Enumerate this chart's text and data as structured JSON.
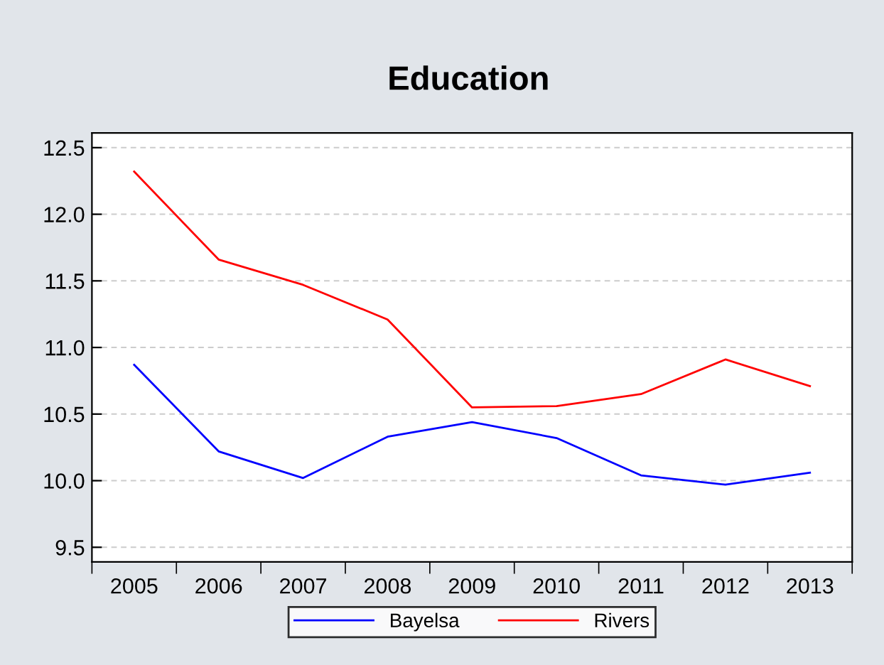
{
  "chart_data": {
    "type": "line",
    "title": "Education",
    "categories": [
      "2005",
      "2006",
      "2007",
      "2008",
      "2009",
      "2010",
      "2011",
      "2012",
      "2013"
    ],
    "series": [
      {
        "name": "Bayelsa",
        "color": "#0000ff",
        "values": [
          10.87,
          10.22,
          10.02,
          10.33,
          10.44,
          10.32,
          10.04,
          9.97,
          10.06
        ]
      },
      {
        "name": "Rivers",
        "color": "#ff0000",
        "values": [
          12.32,
          11.66,
          11.47,
          11.21,
          10.55,
          10.56,
          10.65,
          10.91,
          10.71
        ]
      }
    ],
    "ylim": [
      9.39,
      12.61
    ],
    "yticks": [
      {
        "value": 9.5,
        "label": "9.5"
      },
      {
        "value": 10,
        "label": "10.0"
      },
      {
        "value": 10.5,
        "label": "10.5"
      },
      {
        "value": 11,
        "label": "11.0"
      },
      {
        "value": 11.5,
        "label": "11.5"
      },
      {
        "value": 12,
        "label": "12.0"
      },
      {
        "value": 12.5,
        "label": "12.5"
      }
    ],
    "grid": "y",
    "legend": "bottom",
    "line_style": "solid",
    "marker": "none"
  }
}
